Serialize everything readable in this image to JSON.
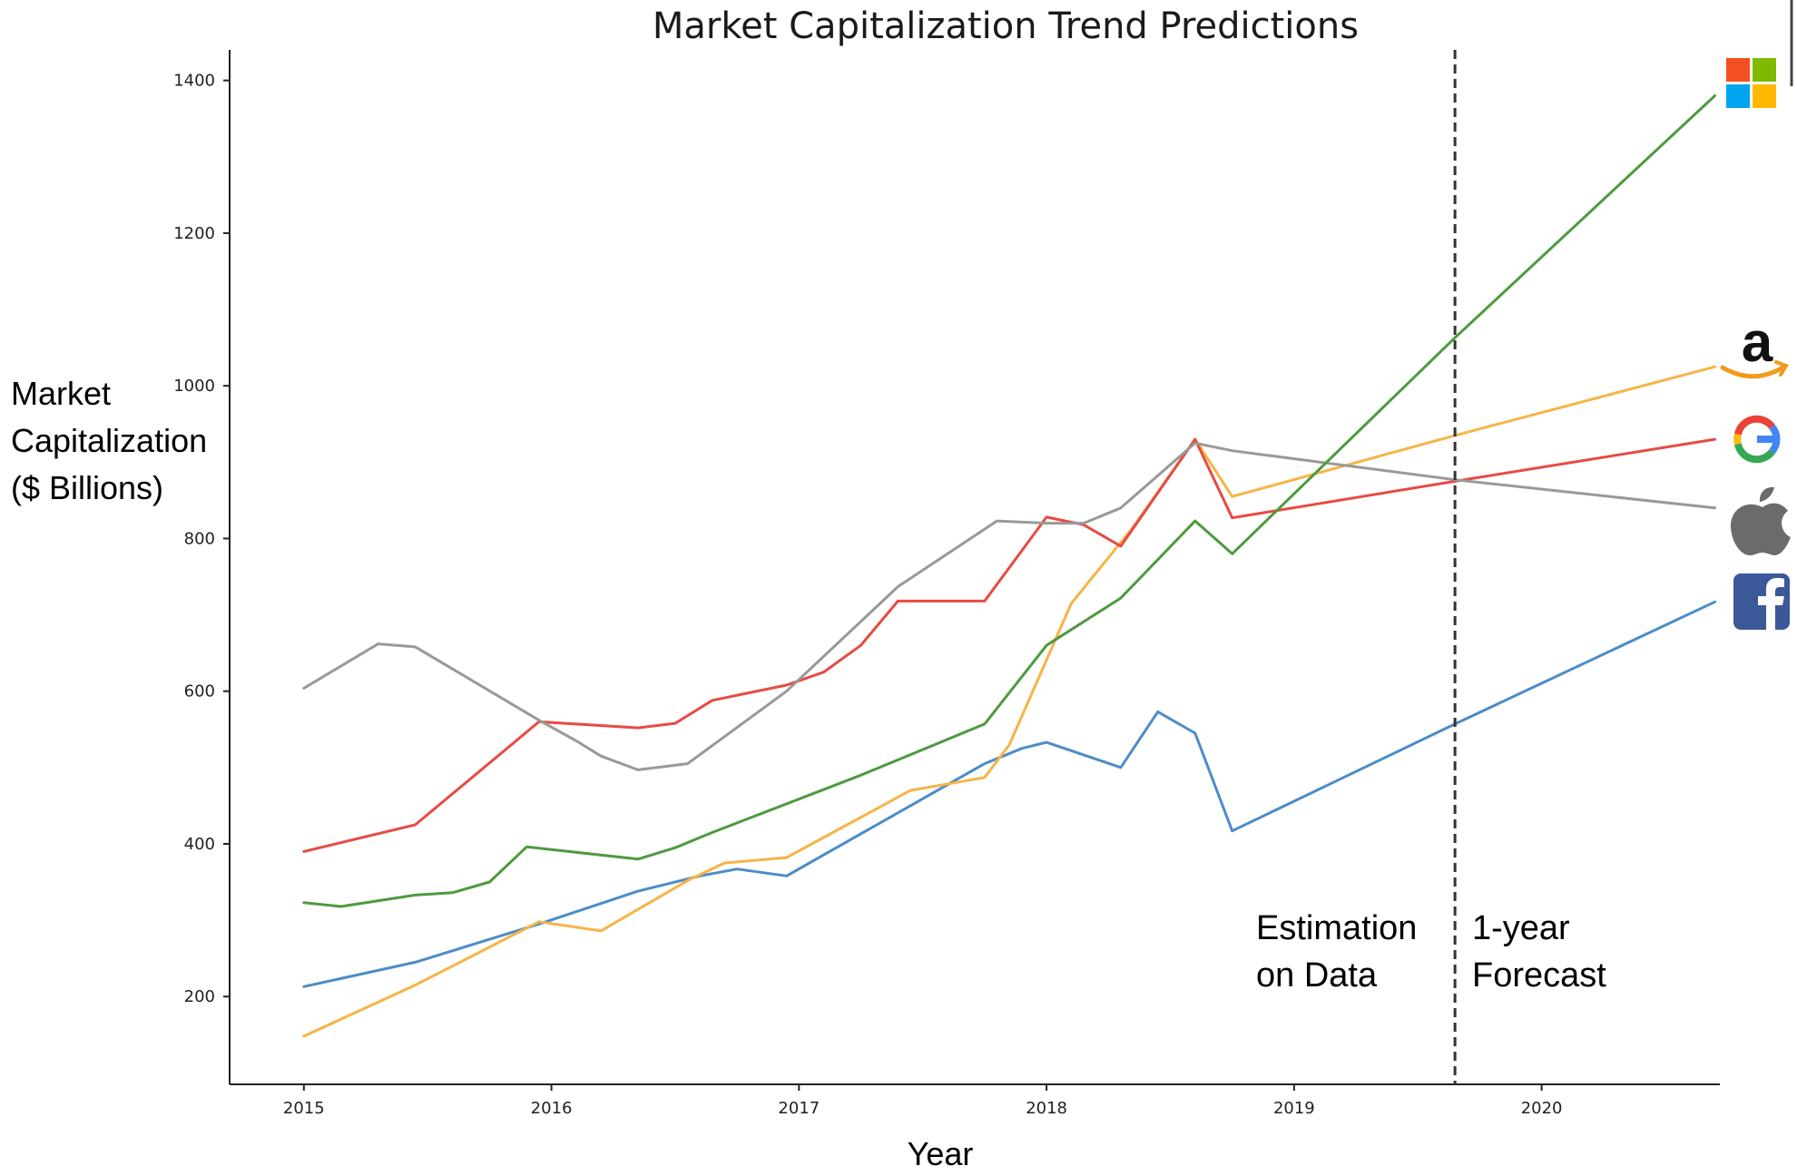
{
  "chart_data": {
    "type": "line",
    "title": "Market Capitalization Trend Predictions",
    "xlabel": "Year",
    "ylabel": [
      "Market",
      "Capitalization",
      "($ Billions)"
    ],
    "xlim": [
      2014.7,
      2020.72
    ],
    "ylim": [
      85,
      1440
    ],
    "x_ticks": [
      2015,
      2016,
      2017,
      2018,
      2019,
      2020
    ],
    "y_ticks": [
      200,
      400,
      600,
      800,
      1000,
      1200,
      1400
    ],
    "grid": false,
    "forecast_start_x": 2019.65,
    "annotations": {
      "left": [
        "Estimation",
        "on Data"
      ],
      "right": [
        "1-year",
        "Forecast"
      ]
    },
    "series": [
      {
        "color": "#4c8cc7",
        "icon": "facebook-logo-icon",
        "x": [
          2015.0,
          2015.45,
          2015.95,
          2016.35,
          2016.6,
          2016.75,
          2016.95,
          2017.75,
          2017.9,
          2018.0,
          2018.3,
          2018.45,
          2018.6,
          2018.75,
          2019.65,
          2020.7
        ],
        "y": [
          213,
          245,
          295,
          338,
          358,
          367,
          358,
          505,
          525,
          533,
          500,
          573,
          545,
          417,
          557,
          717
        ]
      },
      {
        "color": "#f6b447",
        "icon": "amazon-logo-icon",
        "x": [
          2015.0,
          2015.45,
          2015.95,
          2016.2,
          2016.55,
          2016.7,
          2016.95,
          2017.45,
          2017.75,
          2017.85,
          2018.1,
          2018.35,
          2018.6,
          2018.75,
          2019.65,
          2020.7
        ],
        "y": [
          148,
          215,
          298,
          286,
          352,
          375,
          382,
          470,
          487,
          530,
          715,
          815,
          930,
          855,
          935,
          1025
        ]
      },
      {
        "color": "#e84a43",
        "icon": "google-logo-icon",
        "x": [
          2015.0,
          2015.45,
          2015.95,
          2016.35,
          2016.5,
          2016.65,
          2016.95,
          2017.1,
          2017.25,
          2017.4,
          2017.75,
          2018.0,
          2018.15,
          2018.3,
          2018.6,
          2018.75,
          2019.65,
          2020.7
        ],
        "y": [
          390,
          425,
          560,
          552,
          558,
          588,
          608,
          625,
          660,
          718,
          718,
          828,
          818,
          790,
          930,
          827,
          875,
          930
        ]
      },
      {
        "color": "#999999",
        "icon": "apple-logo-icon",
        "x": [
          2015.0,
          2015.3,
          2015.45,
          2015.95,
          2016.1,
          2016.2,
          2016.35,
          2016.55,
          2016.95,
          2017.4,
          2017.8,
          2018.0,
          2018.15,
          2018.3,
          2018.6,
          2018.75,
          2019.65,
          2020.7
        ],
        "y": [
          604,
          662,
          658,
          562,
          535,
          515,
          497,
          505,
          600,
          737,
          823,
          820,
          820,
          840,
          925,
          915,
          877,
          840
        ]
      },
      {
        "color": "#4e9a3f",
        "icon": "microsoft-logo-icon",
        "x": [
          2015.0,
          2015.15,
          2015.45,
          2015.6,
          2015.75,
          2015.9,
          2016.35,
          2016.5,
          2016.65,
          2017.25,
          2017.75,
          2018.0,
          2018.3,
          2018.6,
          2018.75,
          2019.65,
          2020.7
        ],
        "y": [
          323,
          318,
          333,
          336,
          350,
          396,
          380,
          395,
          415,
          490,
          557,
          660,
          722,
          823,
          780,
          1063,
          1380
        ]
      }
    ]
  }
}
